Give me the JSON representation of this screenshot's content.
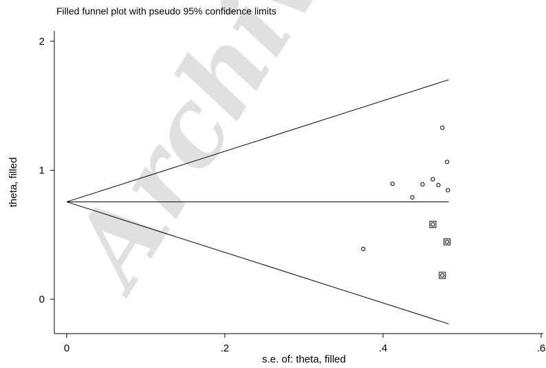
{
  "watermark": "Archive",
  "chart_data": {
    "type": "scatter",
    "title": "Filled funnel plot with pseudo 95% confidence limits",
    "xlabel": "s.e. of: theta, filled",
    "ylabel": "theta, filled",
    "xlim": [
      0,
      0.6
    ],
    "ylim": [
      -0.26,
      2.07
    ],
    "x_ticks": [
      0,
      0.2,
      0.4,
      0.6
    ],
    "x_tick_labels": [
      "0",
      ".2",
      ".4",
      ".6"
    ],
    "y_ticks": [
      0,
      1,
      2
    ],
    "y_tick_labels": [
      "0",
      "1",
      "2"
    ],
    "grid": false,
    "pooled_estimate": 0.755,
    "funnel_max_se": 0.483,
    "series": [
      {
        "marker": "circle",
        "points": [
          {
            "x": 0.375,
            "y": 0.39
          },
          {
            "x": 0.412,
            "y": 0.895
          },
          {
            "x": 0.437,
            "y": 0.79
          },
          {
            "x": 0.45,
            "y": 0.89
          },
          {
            "x": 0.463,
            "y": 0.93
          },
          {
            "x": 0.47,
            "y": 0.885
          },
          {
            "x": 0.475,
            "y": 1.33
          },
          {
            "x": 0.481,
            "y": 1.065
          },
          {
            "x": 0.482,
            "y": 0.845
          }
        ]
      },
      {
        "marker": "square-circle",
        "points": [
          {
            "x": 0.463,
            "y": 0.58
          },
          {
            "x": 0.481,
            "y": 0.445
          },
          {
            "x": 0.475,
            "y": 0.185
          }
        ]
      }
    ]
  }
}
